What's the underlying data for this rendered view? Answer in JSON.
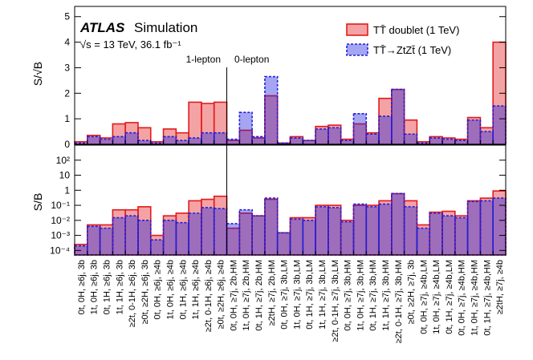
{
  "chart_data": [
    {
      "type": "bar",
      "experiment": "ATLAS",
      "subtitle": "Simulation",
      "energy_label": "√s = 13 TeV, 36.1 fb⁻¹",
      "annotations": [
        "1-lepton",
        "0-lepton"
      ],
      "ylabel": "S/√B",
      "ylim": [
        0,
        5.4
      ],
      "yticks": [
        0,
        1,
        2,
        3,
        4,
        5
      ],
      "series": [
        {
          "name": "TT̄ doublet (1 TeV)",
          "color": "#e31a1c",
          "values": [
            0.1,
            0.35,
            0.25,
            0.8,
            0.85,
            0.65,
            0.1,
            0.6,
            0.45,
            1.65,
            1.6,
            1.65,
            0.15,
            0.55,
            0.25,
            1.9,
            0.05,
            0.3,
            0.15,
            0.7,
            0.75,
            0.2,
            0.8,
            0.45,
            1.8,
            2.15,
            0.95,
            0.1,
            0.3,
            0.25,
            0.2,
            1.05,
            0.65,
            4.0
          ]
        },
        {
          "name": "TT̄→ZtZt̄ (1 TeV)",
          "color": "#1f1fdd",
          "values": [
            0.05,
            0.3,
            0.2,
            0.3,
            0.45,
            0.15,
            0.05,
            0.3,
            0.15,
            0.25,
            0.45,
            0.45,
            0.2,
            1.25,
            0.3,
            2.65,
            0.05,
            0.25,
            0.15,
            0.6,
            0.65,
            0.15,
            1.2,
            0.4,
            1.1,
            2.15,
            0.4,
            0.05,
            0.25,
            0.2,
            0.15,
            0.95,
            0.5,
            1.5
          ]
        }
      ]
    },
    {
      "type": "bar",
      "log_scale": true,
      "ylabel": "S/B",
      "ylim": [
        5e-05,
        1000
      ],
      "yticks": [
        {
          "value": 0.0001,
          "label": "10⁻⁴"
        },
        {
          "value": 0.001,
          "label": "10⁻³"
        },
        {
          "value": 0.01,
          "label": "10⁻²"
        },
        {
          "value": 0.1,
          "label": "10⁻¹"
        },
        1,
        10,
        {
          "value": 100,
          "label": "10²"
        }
      ],
      "categories": [
        "0t, 0H, ≥6j, 3b",
        "1t, 0H, ≥6j, 3b",
        "0t, 1H, ≥6j, 3b",
        "1t, 1H, ≥6j, 3b",
        "≥2t, 0-1H, ≥6j, 3b",
        "≥0t, ≥2H, ≥6j, 3b",
        "0t, 0H, ≥6j, ≥4b",
        "1t, 0H, ≥6j, ≥4b",
        "0t, 1H, ≥6j, ≥4b",
        "1t, 1H, ≥6j, ≥4b",
        "≥2t, 0-1H, ≥6j, ≥4b",
        "≥0t, ≥2H, ≥6j, ≥4b",
        "0t, 0H, ≥7j, 2b,HM",
        "1t, 0H, ≥7j, 2b,HM",
        "0t, 1H, ≥7j, 2b,HM",
        "≥2tH, ≥7j, 2b,HM",
        "0t, 0H, ≥7j, 3b,LM",
        "1t, 0H, ≥7j, 3b,LM",
        "0t, 1H, ≥7j, 3b,LM",
        "1t, 1H, ≥7j, 3b,LM",
        "≥2t, 0-1H, ≥7j, 3b,LM",
        "0t, 0H, ≥7j, 3b,HM",
        "1t, 0H, ≥7j, 3b,HM",
        "0t, 1H, ≥7j, 3b,HM",
        "1t, 1H, ≥7j, 3b,HM",
        "≥2t, 0-1H, ≥7j, 3b,HM",
        "≥0t, ≥2H, ≥7j, 3b",
        "0t, 0H, ≥7j, ≥4b,LM",
        "1t, 0H, ≥7j, ≥4b,LM",
        "0t, 1H, ≥7j, ≥4b,LM",
        "0t, 0H, ≥7j, ≥4b,HM",
        "1t, 0H, ≥7j, ≥4b,HM",
        "0t, 1H, ≥7j, ≥4b,HM",
        "≥2tH, ≥7j, ≥4b"
      ],
      "series": [
        {
          "name": "TT̄ doublet (1 TeV)",
          "color": "#e31a1c",
          "values": [
            0.00025,
            0.005,
            0.005,
            0.05,
            0.05,
            0.08,
            0.001,
            0.02,
            0.03,
            0.2,
            0.25,
            0.4,
            0.003,
            0.03,
            0.02,
            0.25,
            0.0015,
            0.015,
            0.015,
            0.1,
            0.1,
            0.01,
            0.1,
            0.1,
            0.2,
            0.6,
            0.2,
            0.005,
            0.035,
            0.04,
            0.02,
            0.2,
            0.3,
            0.9
          ]
        },
        {
          "name": "TT̄→ZtZt̄ (1 TeV)",
          "color": "#1f1fdd",
          "values": [
            0.0002,
            0.004,
            0.003,
            0.015,
            0.02,
            0.01,
            0.0005,
            0.01,
            0.007,
            0.03,
            0.07,
            0.06,
            0.006,
            0.05,
            0.02,
            0.3,
            0.0015,
            0.012,
            0.01,
            0.08,
            0.07,
            0.008,
            0.12,
            0.08,
            0.12,
            0.6,
            0.08,
            0.003,
            0.03,
            0.02,
            0.015,
            0.18,
            0.2,
            0.3
          ]
        }
      ]
    }
  ]
}
